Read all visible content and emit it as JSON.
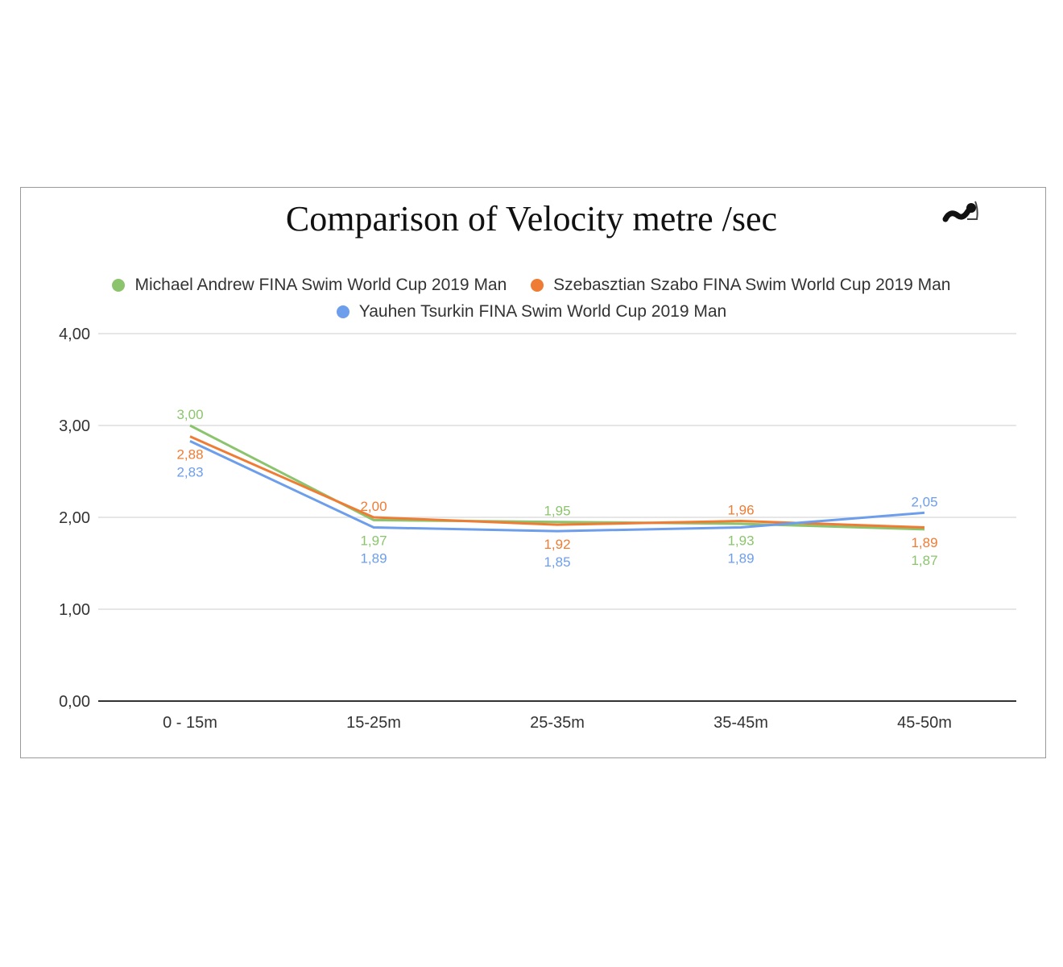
{
  "chart_data": {
    "type": "line",
    "title": "Comparison of Velocity metre /sec",
    "logo": "AnalysisSwim",
    "categories": [
      "0 - 15m",
      "15-25m",
      "25-35m",
      "35-45m",
      "45-50m"
    ],
    "ylim": [
      0,
      4
    ],
    "yticks": [
      "0,00",
      "1,00",
      "2,00",
      "3,00",
      "4,00"
    ],
    "grid": true,
    "legend_position": "top",
    "series": [
      {
        "name": "Michael Andrew FINA Swim World Cup 2019 Man",
        "color": "#8cc46e",
        "values": [
          3.0,
          1.97,
          1.95,
          1.93,
          1.87
        ],
        "labels": [
          "3,00",
          "1,97",
          "1,95",
          "1,93",
          "1,87"
        ]
      },
      {
        "name": "Szebasztian Szabo FINA Swim World Cup 2019 Man",
        "color": "#ef7c34",
        "values": [
          2.88,
          2.0,
          1.92,
          1.96,
          1.89
        ],
        "labels": [
          "2,88",
          "2,00",
          "1,92",
          "1,96",
          "1,89"
        ]
      },
      {
        "name": "Yauhen Tsurkin FINA Swim World Cup 2019 Man",
        "color": "#6d9eeb",
        "values": [
          2.83,
          1.89,
          1.85,
          1.89,
          2.05
        ],
        "labels": [
          "2,83",
          "1,89",
          "1,85",
          "1,89",
          "2,05"
        ]
      }
    ]
  }
}
